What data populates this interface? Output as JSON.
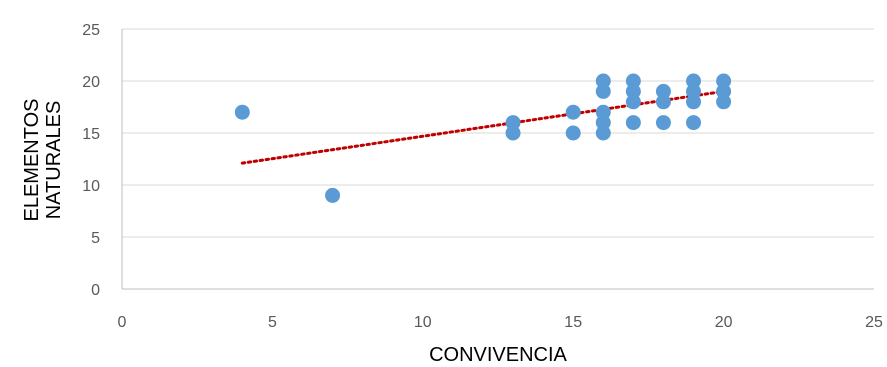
{
  "chart_data": {
    "type": "scatter",
    "xlabel": "CONVIVENCIA",
    "ylabel_lines": [
      "ELEMENTOS",
      "NATURALES"
    ],
    "xlim": [
      0,
      25
    ],
    "ylim": [
      0,
      25
    ],
    "x_ticks": [
      0,
      5,
      10,
      15,
      20,
      25
    ],
    "y_ticks": [
      0,
      5,
      10,
      15,
      20,
      25
    ],
    "grid": "horizontal",
    "legend": "none",
    "colors": {
      "points": "#5b9bd5",
      "trendline": "#c00000",
      "grid": "#d9d9d9",
      "axis": "#bfbfbf"
    },
    "series": [
      {
        "points": [
          {
            "x": 4,
            "y": 17
          },
          {
            "x": 7,
            "y": 9
          },
          {
            "x": 13,
            "y": 16
          },
          {
            "x": 13,
            "y": 15
          },
          {
            "x": 15,
            "y": 17
          },
          {
            "x": 15,
            "y": 15
          },
          {
            "x": 16,
            "y": 20
          },
          {
            "x": 16,
            "y": 19
          },
          {
            "x": 16,
            "y": 17
          },
          {
            "x": 16,
            "y": 16
          },
          {
            "x": 16,
            "y": 15
          },
          {
            "x": 17,
            "y": 20
          },
          {
            "x": 17,
            "y": 19
          },
          {
            "x": 17,
            "y": 18
          },
          {
            "x": 17,
            "y": 16
          },
          {
            "x": 18,
            "y": 19
          },
          {
            "x": 18,
            "y": 18
          },
          {
            "x": 18,
            "y": 16
          },
          {
            "x": 19,
            "y": 20
          },
          {
            "x": 19,
            "y": 19
          },
          {
            "x": 19,
            "y": 18
          },
          {
            "x": 19,
            "y": 16
          },
          {
            "x": 20,
            "y": 20
          },
          {
            "x": 20,
            "y": 19
          },
          {
            "x": 20,
            "y": 18
          }
        ]
      }
    ],
    "trendline": {
      "type": "linear",
      "start": {
        "x": 4,
        "y": 12.1
      },
      "end": {
        "x": 20,
        "y": 19
      }
    }
  }
}
